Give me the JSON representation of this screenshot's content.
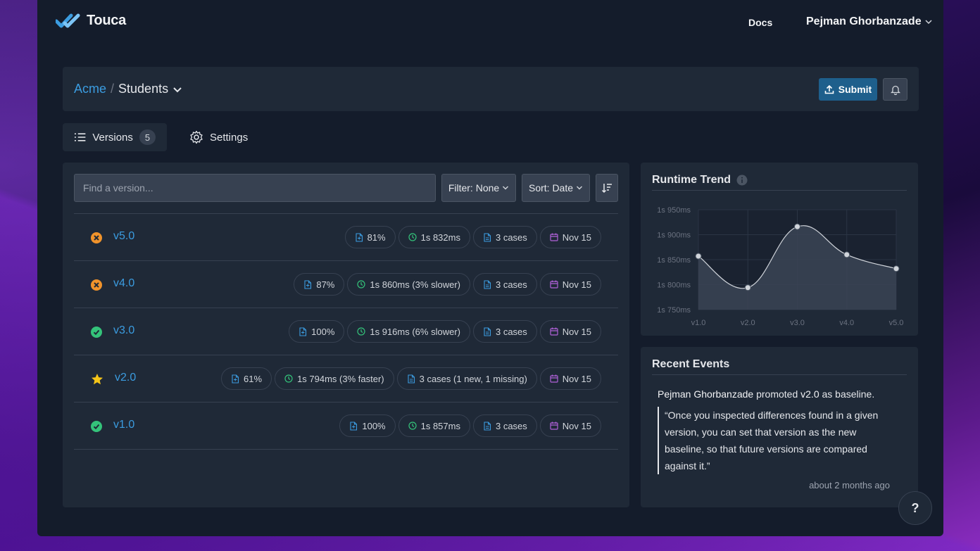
{
  "app": {
    "name": "Touca"
  },
  "header": {
    "docs_label": "Docs",
    "user_name": "Pejman Ghorbanzade"
  },
  "breadcrumb": {
    "team": "Acme",
    "separator": "/",
    "suite": "Students"
  },
  "actions": {
    "submit_label": "Submit"
  },
  "tabs": [
    {
      "label": "Versions",
      "count": "5"
    },
    {
      "label": "Settings"
    }
  ],
  "search": {
    "placeholder": "Find a version..."
  },
  "filter": {
    "label": "Filter: None"
  },
  "sort": {
    "label": "Sort: Date"
  },
  "versions": [
    {
      "name": "v5.0",
      "status": "failed",
      "score": "81%",
      "runtime": "1s 832ms",
      "cases": "3 cases",
      "date": "Nov 15"
    },
    {
      "name": "v4.0",
      "status": "failed",
      "score": "87%",
      "runtime": "1s 860ms (3% slower)",
      "cases": "3 cases",
      "date": "Nov 15"
    },
    {
      "name": "v3.0",
      "status": "passed",
      "score": "100%",
      "runtime": "1s 916ms (6% slower)",
      "cases": "3 cases",
      "date": "Nov 15"
    },
    {
      "name": "v2.0",
      "status": "baseline",
      "score": "61%",
      "runtime": "1s 794ms (3% faster)",
      "cases": "3 cases (1 new, 1 missing)",
      "date": "Nov 15"
    },
    {
      "name": "v1.0",
      "status": "passed",
      "score": "100%",
      "runtime": "1s 857ms",
      "cases": "3 cases",
      "date": "Nov 15"
    }
  ],
  "trend": {
    "title": "Runtime Trend"
  },
  "chart_data": {
    "type": "area",
    "title": "Runtime Trend",
    "categories": [
      "v1.0",
      "v2.0",
      "v3.0",
      "v4.0",
      "v5.0"
    ],
    "values_ms": [
      1857,
      1794,
      1916,
      1860,
      1832
    ],
    "y_ticks": [
      "1s 950ms",
      "1s 900ms",
      "1s 850ms",
      "1s 800ms",
      "1s 750ms"
    ],
    "ylim": [
      1750,
      1950
    ],
    "grid": true
  },
  "events": {
    "title": "Recent Events",
    "actor": "Pejman Ghorbanzade",
    "action": "promoted",
    "version": "v2.0",
    "suffix": "as baseline.",
    "quote": "“Once you inspected differences found in a given version, you can set that version as the new baseline, so that future versions are compared against it.”",
    "time": "about 2 months ago"
  },
  "help": {
    "label": "?"
  },
  "colors": {
    "accent": "#3b9ce0",
    "failed": "#f0932b",
    "passed": "#34c37a",
    "baseline": "#f5c518",
    "submit": "#1e5f8c"
  }
}
